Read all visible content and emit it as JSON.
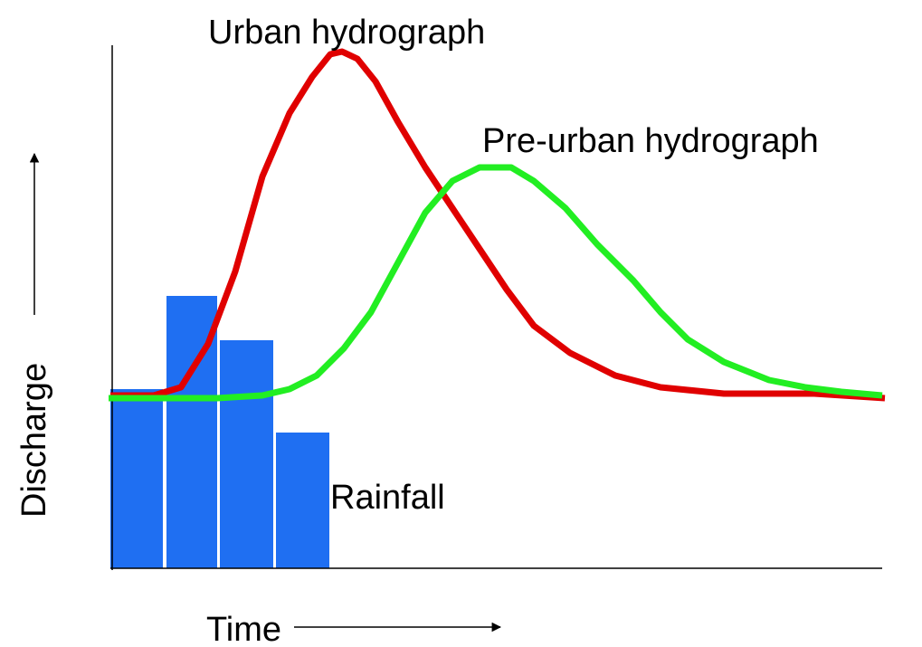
{
  "labels": {
    "urban": "Urban hydrograph",
    "preurban": "Pre-urban hydrograph",
    "rainfall": "Rainfall",
    "x_axis": "Time",
    "y_axis": "Discharge"
  }
}
